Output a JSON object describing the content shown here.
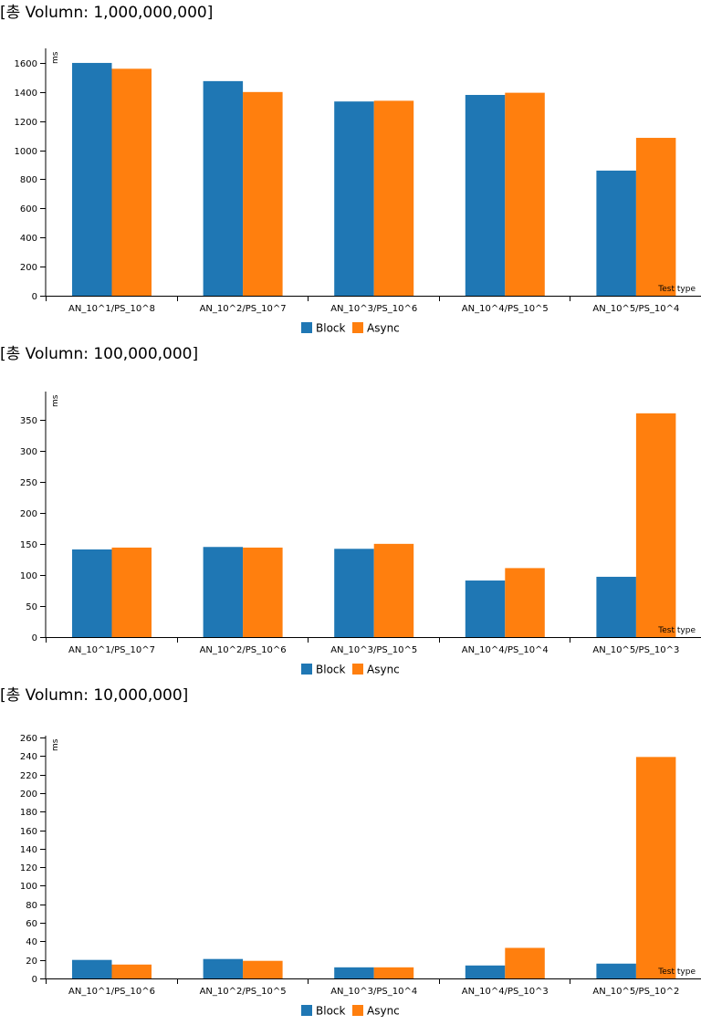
{
  "colors": {
    "block": "#1f77b4",
    "async": "#ff7f0e"
  },
  "chart_data": [
    {
      "type": "bar",
      "title": "[총 Volumn: 1,000,000,000]",
      "xlabel": "Test type",
      "ylabel": "ms",
      "ylim": [
        0,
        1700
      ],
      "yticks": [
        0,
        200,
        400,
        600,
        800,
        1000,
        1200,
        1400,
        1600
      ],
      "categories": [
        "AN_10^1/PS_10^8",
        "AN_10^2/PS_10^7",
        "AN_10^3/PS_10^6",
        "AN_10^4/PS_10^5",
        "AN_10^5/PS_10^4"
      ],
      "series": [
        {
          "name": "Block",
          "color": "#1f77b4",
          "values": [
            1600,
            1475,
            1335,
            1380,
            860
          ]
        },
        {
          "name": "Async",
          "color": "#ff7f0e",
          "values": [
            1560,
            1400,
            1340,
            1395,
            1085
          ]
        }
      ],
      "legend": "bottom-center"
    },
    {
      "type": "bar",
      "title": "[총 Volumn: 100,000,000]",
      "xlabel": "Test type",
      "ylabel": "ms",
      "ylim": [
        0,
        395
      ],
      "yticks": [
        0,
        50,
        100,
        150,
        200,
        250,
        300,
        350
      ],
      "categories": [
        "AN_10^1/PS_10^7",
        "AN_10^2/PS_10^6",
        "AN_10^3/PS_10^5",
        "AN_10^4/PS_10^4",
        "AN_10^5/PS_10^3"
      ],
      "series": [
        {
          "name": "Block",
          "color": "#1f77b4",
          "values": [
            141,
            145,
            142,
            91,
            97
          ]
        },
        {
          "name": "Async",
          "color": "#ff7f0e",
          "values": [
            144,
            144,
            150,
            111,
            360
          ]
        }
      ],
      "legend": "bottom-center"
    },
    {
      "type": "bar",
      "title": "[총 Volumn: 10,000,000]",
      "xlabel": "Test type",
      "ylabel": "ms",
      "ylim": [
        0,
        262
      ],
      "yticks": [
        0,
        20,
        40,
        60,
        80,
        100,
        120,
        140,
        160,
        180,
        200,
        220,
        240,
        260
      ],
      "categories": [
        "AN_10^1/PS_10^6",
        "AN_10^2/PS_10^5",
        "AN_10^3/PS_10^4",
        "AN_10^4/PS_10^3",
        "AN_10^5/PS_10^2"
      ],
      "series": [
        {
          "name": "Block",
          "color": "#1f77b4",
          "values": [
            20,
            21,
            12,
            14,
            16
          ]
        },
        {
          "name": "Async",
          "color": "#ff7f0e",
          "values": [
            15,
            19,
            12,
            33,
            239
          ]
        }
      ],
      "legend": "bottom-center"
    }
  ]
}
